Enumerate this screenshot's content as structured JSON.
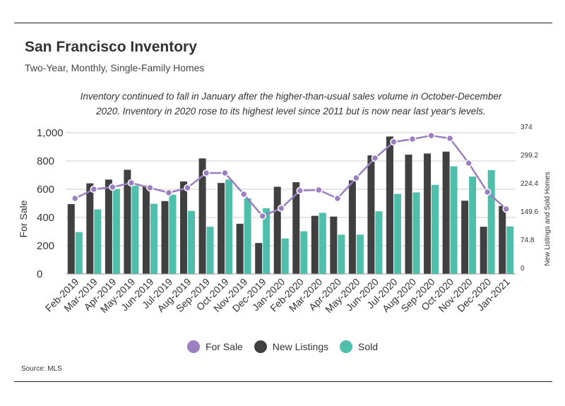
{
  "header": {
    "title": "San Francisco Inventory",
    "subtitle": "Two-Year, Monthly, Single-Family Homes"
  },
  "annotation": {
    "line1": "Inventory continued to fall in January after the higher-than-usual sales volume in October-December",
    "line2": "2020. Inventory in 2020 rose to its highest level since 2011 but is now near last year's levels."
  },
  "legend": {
    "for_sale": "For Sale",
    "new_listings": "New Listings",
    "sold": "Sold"
  },
  "source": "Source:  MLS",
  "colors": {
    "for_sale": "#9b7fc0",
    "new_listings": "#404040",
    "sold": "#4fbfac",
    "grid": "#cccccc"
  },
  "chart_data": {
    "type": "bar",
    "categories": [
      "Feb-2019",
      "Mar-2019",
      "Apr-2019",
      "May-2019",
      "Jun-2019",
      "Jul-2019",
      "Aug-2019",
      "Sep-2019",
      "Oct-2019",
      "Nov-2019",
      "Dec-2019",
      "Jan-2020",
      "Feb-2020",
      "Mar-2020",
      "Apr-2020",
      "May-2020",
      "Jun-2020",
      "Jul-2020",
      "Aug-2020",
      "Sep-2020",
      "Oct-2020",
      "Nov-2020",
      "Dec-2020",
      "Jan-2021"
    ],
    "ylabel": "For Sale",
    "y2label": "New Listings and Sold Homes",
    "ylim": [
      0,
      1000
    ],
    "y2lim": [
      0,
      374
    ],
    "yticks": [
      "0",
      "200",
      "400",
      "600",
      "800",
      "1,000"
    ],
    "y2ticks": [
      "0",
      "74.8",
      "149.6",
      "224.4",
      "299.2",
      "374"
    ],
    "series": [
      {
        "name": "For Sale",
        "type": "line",
        "axis": "left",
        "values": [
          535,
          600,
          615,
          645,
          610,
          575,
          610,
          715,
          715,
          565,
          410,
          465,
          590,
          595,
          535,
          680,
          820,
          935,
          955,
          980,
          960,
          785,
          580,
          460
        ]
      },
      {
        "name": "New Listings",
        "type": "bar",
        "axis": "right",
        "values": [
          185,
          240,
          250,
          276,
          234,
          193,
          245,
          306,
          241,
          133,
          82,
          231,
          243,
          154,
          152,
          248,
          314,
          364,
          316,
          319,
          324,
          194,
          125,
          180
        ]
      },
      {
        "name": "Sold",
        "type": "bar",
        "axis": "right",
        "values": [
          111,
          171,
          225,
          234,
          186,
          210,
          167,
          125,
          250,
          200,
          174,
          94,
          113,
          162,
          104,
          104,
          166,
          212,
          216,
          236,
          285,
          258,
          275,
          126
        ]
      }
    ]
  }
}
